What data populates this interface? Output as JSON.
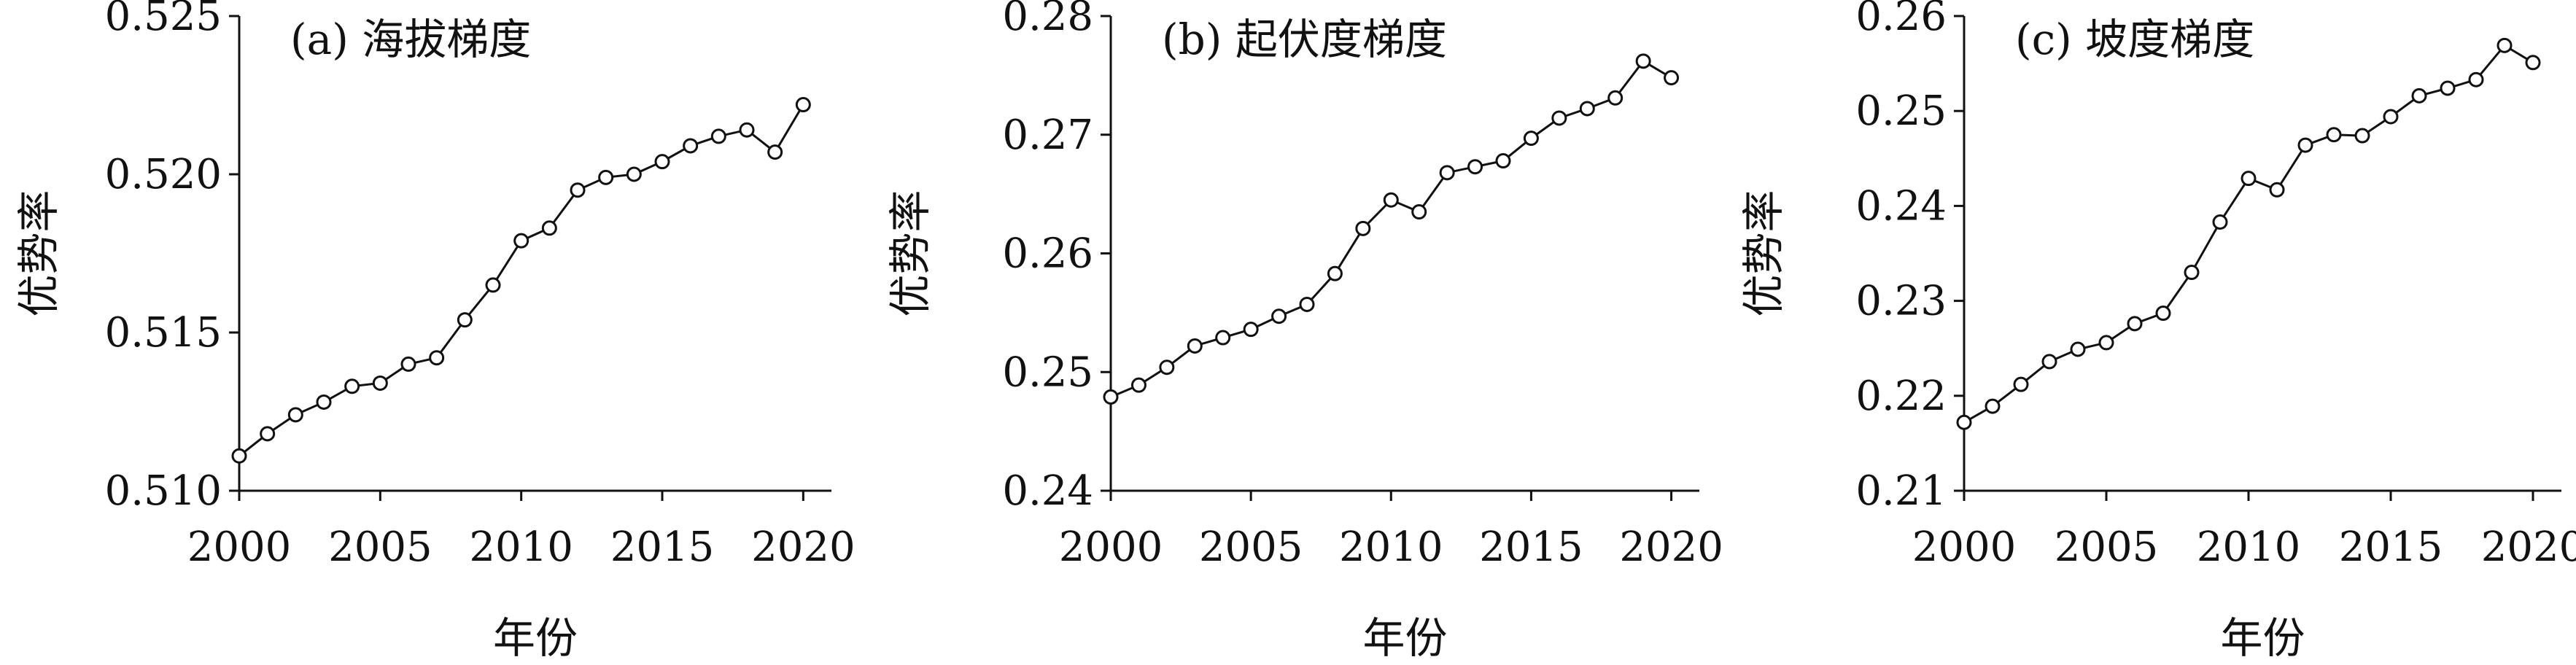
{
  "chart_data": [
    {
      "type": "line",
      "title": "(a) 海拔梯度",
      "xlabel": "年份",
      "ylabel": "优势率",
      "xlim": [
        2000,
        2021
      ],
      "ylim": [
        0.51,
        0.525
      ],
      "x_ticks": [
        2000,
        2005,
        2010,
        2015,
        2020
      ],
      "y_ticks": [
        "0.510",
        "0.515",
        "0.520",
        "0.525"
      ],
      "x": [
        2000,
        2001,
        2002,
        2003,
        2004,
        2005,
        2006,
        2007,
        2008,
        2009,
        2010,
        2011,
        2012,
        2013,
        2014,
        2015,
        2016,
        2017,
        2018,
        2019,
        2020
      ],
      "values": [
        0.5111,
        0.5118,
        0.5124,
        0.5128,
        0.5133,
        0.5134,
        0.514,
        0.5142,
        0.5154,
        0.5165,
        0.5179,
        0.5183,
        0.5195,
        0.5199,
        0.52,
        0.5204,
        0.5209,
        0.5212,
        0.5214,
        0.5207,
        0.5222
      ]
    },
    {
      "type": "line",
      "title": "(b) 起伏度梯度",
      "xlabel": "年份",
      "ylabel": "优势率",
      "xlim": [
        2000,
        2021
      ],
      "ylim": [
        0.24,
        0.28
      ],
      "x_ticks": [
        2000,
        2005,
        2010,
        2015,
        2020
      ],
      "y_ticks": [
        "0.24",
        "0.25",
        "0.26",
        "0.27",
        "0.28"
      ],
      "x": [
        2000,
        2001,
        2002,
        2003,
        2004,
        2005,
        2006,
        2007,
        2008,
        2009,
        2010,
        2011,
        2012,
        2013,
        2014,
        2015,
        2016,
        2017,
        2018,
        2019,
        2020
      ],
      "values": [
        0.2479,
        0.2489,
        0.2504,
        0.2522,
        0.2529,
        0.2536,
        0.2547,
        0.2557,
        0.2583,
        0.2621,
        0.2645,
        0.2635,
        0.2668,
        0.2673,
        0.2678,
        0.2697,
        0.2714,
        0.2722,
        0.2731,
        0.2762,
        0.2748
      ]
    },
    {
      "type": "line",
      "title": "(c) 坡度梯度",
      "xlabel": "年份",
      "ylabel": "优势率",
      "xlim": [
        2000,
        2021
      ],
      "ylim": [
        0.21,
        0.26
      ],
      "x_ticks": [
        2000,
        2005,
        2010,
        2015,
        2020
      ],
      "y_ticks": [
        "0.21",
        "0.22",
        "0.23",
        "0.24",
        "0.25",
        "0.26"
      ],
      "x": [
        2000,
        2001,
        2002,
        2003,
        2004,
        2005,
        2006,
        2007,
        2008,
        2009,
        2010,
        2011,
        2012,
        2013,
        2014,
        2015,
        2016,
        2017,
        2018,
        2019,
        2020
      ],
      "values": [
        0.2172,
        0.2189,
        0.2212,
        0.2236,
        0.2249,
        0.2256,
        0.2276,
        0.2287,
        0.233,
        0.2383,
        0.2429,
        0.2417,
        0.2464,
        0.2475,
        0.2474,
        0.2494,
        0.2516,
        0.2524,
        0.2533,
        0.2569,
        0.2551
      ]
    }
  ]
}
